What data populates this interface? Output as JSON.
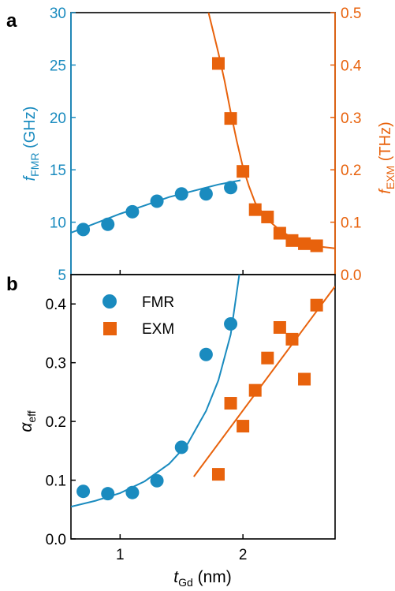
{
  "colors": {
    "fmr": "#1a8bbf",
    "exm": "#e8620c",
    "axis": "#000000"
  },
  "chart_data": [
    {
      "panel_label": "a",
      "type": "scatter",
      "xlim": [
        0.6,
        2.75
      ],
      "left_axis": {
        "label_main": "f",
        "label_sub": "FMR",
        "label_unit": "(GHz)",
        "ylim": [
          5,
          30
        ],
        "ticks": [
          5,
          10,
          15,
          20,
          25,
          30
        ]
      },
      "right_axis": {
        "label_main": "f",
        "label_sub": "EXM",
        "label_unit": "(THz)",
        "ylim": [
          0.0,
          0.5
        ],
        "ticks": [
          "0.0",
          "0.1",
          "0.2",
          "0.3",
          "0.4",
          "0.5"
        ]
      },
      "series": [
        {
          "axis": "left",
          "marker": "circle",
          "points": [
            [
              0.7,
              9.3
            ],
            [
              0.9,
              9.8
            ],
            [
              1.1,
              11.0
            ],
            [
              1.3,
              12.0
            ],
            [
              1.5,
              12.7
            ],
            [
              1.7,
              12.7
            ],
            [
              1.9,
              13.3
            ]
          ],
          "fit": [
            [
              0.6,
              9.0
            ],
            [
              0.8,
              9.9
            ],
            [
              1.0,
              10.8
            ],
            [
              1.2,
              11.6
            ],
            [
              1.4,
              12.4
            ],
            [
              1.6,
              13.0
            ],
            [
              1.8,
              13.6
            ],
            [
              1.98,
              14.0
            ]
          ]
        },
        {
          "axis": "right",
          "marker": "square",
          "points": [
            [
              1.8,
              0.403
            ],
            [
              1.9,
              0.298
            ],
            [
              2.0,
              0.197
            ],
            [
              2.1,
              0.124
            ],
            [
              2.2,
              0.11
            ],
            [
              2.3,
              0.079
            ],
            [
              2.4,
              0.065
            ],
            [
              2.5,
              0.059
            ],
            [
              2.6,
              0.055
            ]
          ],
          "fit": [
            [
              1.72,
              0.5
            ],
            [
              1.76,
              0.462
            ],
            [
              1.8,
              0.423
            ],
            [
              1.85,
              0.37
            ],
            [
              1.9,
              0.31
            ],
            [
              1.95,
              0.255
            ],
            [
              2.0,
              0.205
            ],
            [
              2.05,
              0.168
            ],
            [
              2.1,
              0.137
            ],
            [
              2.2,
              0.105
            ],
            [
              2.3,
              0.085
            ],
            [
              2.4,
              0.07
            ],
            [
              2.5,
              0.06
            ],
            [
              2.6,
              0.054
            ],
            [
              2.75,
              0.05
            ]
          ]
        }
      ]
    },
    {
      "panel_label": "b",
      "type": "scatter",
      "xlim": [
        0.6,
        2.75
      ],
      "xlabel_main": "t",
      "xlabel_sub": "Gd",
      "xlabel_unit": "(nm)",
      "xticks": [
        1,
        2
      ],
      "ylabel_main": "α",
      "ylabel_sub": "eff",
      "ylim": [
        0.0,
        0.45
      ],
      "yticks": [
        "0.0",
        "0.1",
        "0.2",
        "0.3",
        "0.4"
      ],
      "legend": {
        "position": "top-left",
        "entries": [
          "FMR",
          "EXM"
        ]
      },
      "series": [
        {
          "name": "FMR",
          "marker": "circle",
          "points": [
            [
              0.7,
              0.081
            ],
            [
              0.9,
              0.077
            ],
            [
              1.1,
              0.079
            ],
            [
              1.3,
              0.099
            ],
            [
              1.5,
              0.156
            ],
            [
              1.7,
              0.314
            ],
            [
              1.9,
              0.366
            ]
          ],
          "fit": [
            [
              0.6,
              0.055
            ],
            [
              0.8,
              0.065
            ],
            [
              1.0,
              0.078
            ],
            [
              1.2,
              0.098
            ],
            [
              1.4,
              0.128
            ],
            [
              1.55,
              0.162
            ],
            [
              1.7,
              0.218
            ],
            [
              1.8,
              0.27
            ],
            [
              1.9,
              0.348
            ],
            [
              1.97,
              0.45
            ]
          ]
        },
        {
          "name": "EXM",
          "marker": "square",
          "points": [
            [
              1.8,
              0.11
            ],
            [
              1.9,
              0.231
            ],
            [
              2.0,
              0.192
            ],
            [
              2.1,
              0.253
            ],
            [
              2.2,
              0.308
            ],
            [
              2.3,
              0.36
            ],
            [
              2.4,
              0.34
            ],
            [
              2.5,
              0.272
            ],
            [
              2.6,
              0.398
            ]
          ],
          "fit": [
            [
              1.6,
              0.106
            ],
            [
              2.75,
              0.43
            ]
          ]
        }
      ]
    }
  ]
}
